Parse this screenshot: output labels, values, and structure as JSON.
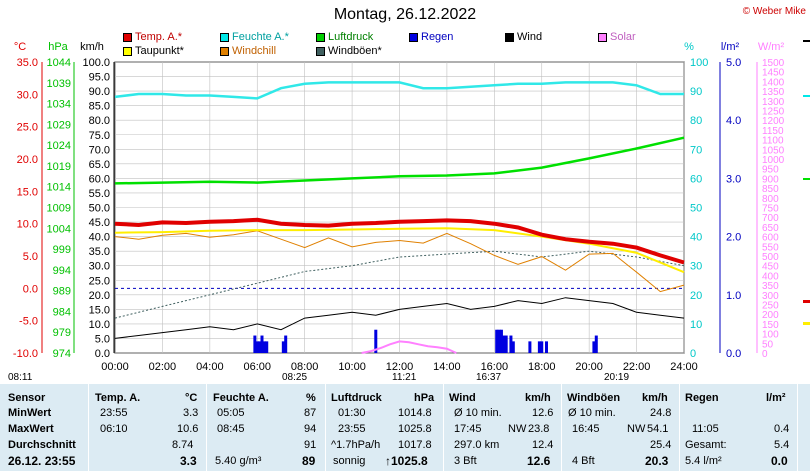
{
  "title": "Montag, 26.12.2022",
  "copyright": "© Weber Mike",
  "legend": [
    {
      "label": "Temp. A.*",
      "color": "#e00000"
    },
    {
      "label": "Feuchte A.*",
      "color": "#00e8e8"
    },
    {
      "label": "Luftdruck",
      "color": "#00d000"
    },
    {
      "label": "Regen",
      "color": "#0000e0"
    },
    {
      "label": "Wind",
      "color": "#000000"
    },
    {
      "label": "Solar",
      "color": "#ff80ff"
    },
    {
      "label": "Taupunkt*",
      "color": "#ffff00"
    },
    {
      "label": "Windchill",
      "color": "#e08000"
    },
    {
      "label": "Windböen*",
      "color": "#406060"
    }
  ],
  "axis_units": {
    "temp": "°C",
    "pressure": "hPa",
    "wind": "km/h",
    "humidity": "%",
    "rain": "l/m²",
    "solar": "W/m²"
  },
  "colors": {
    "temp": "#e00000",
    "pressure": "#00c000",
    "humidity": "#00c8c8",
    "rain": "#0000c0",
    "solar": "#ff80ff",
    "stats_bg": "#dcebf3"
  },
  "chart_data": {
    "type": "line",
    "x_ticks": [
      "00:00",
      "02:00",
      "04:00",
      "06:00",
      "08:00",
      "10:00",
      "12:00",
      "14:00",
      "16:00",
      "18:00",
      "20:00",
      "22:00",
      "24:00"
    ],
    "temp_ticks": [
      "35.0",
      "30.0",
      "25.0",
      "20.0",
      "15.0",
      "10.0",
      "5.0",
      "0.0",
      "-5.0",
      "-10.0"
    ],
    "pressure_ticks": [
      "1044",
      "1039",
      "1034",
      "1029",
      "1024",
      "1019",
      "1014",
      "1009",
      "1004",
      "999",
      "994",
      "989",
      "984",
      "979",
      "974"
    ],
    "wind_ticks": [
      "100.0",
      "95.0",
      "90.0",
      "85.0",
      "80.0",
      "75.0",
      "70.0",
      "65.0",
      "60.0",
      "55.0",
      "50.0",
      "45.0",
      "40.0",
      "35.0",
      "30.0",
      "25.0",
      "20.0",
      "15.0",
      "10.0",
      "5.0",
      "0.0"
    ],
    "humidity_ticks": [
      "100",
      "90",
      "80",
      "70",
      "60",
      "50",
      "40",
      "30",
      "20",
      "10",
      "0"
    ],
    "rain_ticks": [
      "5.0",
      "4.0",
      "3.0",
      "2.0",
      "1.0",
      "0.0"
    ],
    "solar_ticks": [
      "1500",
      "1450",
      "1400",
      "1350",
      "1300",
      "1250",
      "1200",
      "1150",
      "1100",
      "1050",
      "1000",
      "950",
      "900",
      "850",
      "800",
      "750",
      "700",
      "650",
      "600",
      "550",
      "500",
      "450",
      "400",
      "350",
      "300",
      "250",
      "200",
      "150",
      "100",
      "50",
      "0"
    ],
    "series": [
      {
        "name": "Temp. A.*",
        "hours": [
          0,
          1,
          2,
          3,
          4,
          5,
          6,
          7,
          8,
          9,
          10,
          11,
          12,
          13,
          14,
          15,
          16,
          17,
          18,
          19,
          20,
          21,
          22,
          23,
          24
        ],
        "values": [
          10.0,
          9.8,
          10.2,
          10.1,
          10.3,
          10.4,
          10.6,
          10.0,
          9.8,
          9.7,
          10.0,
          10.1,
          10.3,
          10.4,
          10.5,
          10.4,
          10.0,
          9.4,
          8.3,
          7.6,
          7.2,
          6.9,
          6.3,
          5.1,
          4.0
        ]
      },
      {
        "name": "Taupunkt*",
        "hours": [
          0,
          2,
          4,
          6,
          8,
          10,
          12,
          14,
          16,
          18,
          20,
          22,
          24
        ],
        "values": [
          8.6,
          8.7,
          8.9,
          9.0,
          9.0,
          9.1,
          9.2,
          9.3,
          9.0,
          8.0,
          6.9,
          5.5,
          2.5
        ]
      },
      {
        "name": "Feuchte A.*",
        "hours": [
          0,
          1,
          2,
          3,
          4,
          5,
          6,
          7,
          8,
          9,
          10,
          11,
          12,
          13,
          14,
          15,
          16,
          17,
          18,
          19,
          20,
          21,
          22,
          23,
          24
        ],
        "values": [
          88,
          89,
          89,
          88.5,
          88.5,
          88,
          87.5,
          91,
          92.5,
          93,
          93,
          93,
          93,
          91,
          91,
          91.5,
          92,
          92.5,
          92.5,
          93,
          93,
          93,
          92,
          89,
          89
        ]
      },
      {
        "name": "Luftdruck",
        "hours": [
          0,
          2,
          4,
          6,
          8,
          10,
          12,
          14,
          16,
          18,
          20,
          22,
          24
        ],
        "values": [
          1014.8,
          1015.0,
          1015.2,
          1015.0,
          1015.5,
          1016.0,
          1016.5,
          1016.7,
          1017.2,
          1018.6,
          1020.8,
          1023.2,
          1025.8
        ]
      },
      {
        "name": "Wind",
        "hours": [
          0,
          1,
          2,
          3,
          4,
          5,
          6,
          7,
          8,
          9,
          10,
          11,
          12,
          13,
          14,
          15,
          16,
          17,
          18,
          19,
          20,
          21,
          22,
          23,
          24
        ],
        "values": [
          5,
          6,
          7,
          8,
          9,
          8,
          10,
          8,
          12,
          13,
          14,
          13,
          15,
          16,
          17,
          15,
          16,
          18,
          17,
          19,
          18,
          17,
          14,
          13,
          12
        ]
      },
      {
        "name": "Windböen*",
        "hours": [
          0,
          2,
          4,
          6,
          8,
          10,
          12,
          14,
          16,
          18,
          20,
          22,
          24
        ],
        "values": [
          12,
          16,
          20,
          24,
          28,
          30,
          33,
          34,
          35,
          33,
          35,
          33,
          30
        ]
      },
      {
        "name": "Windchill",
        "hours": [
          0,
          1,
          2,
          3,
          4,
          5,
          6,
          7,
          8,
          9,
          10,
          11,
          12,
          13,
          14,
          15,
          16,
          17,
          18,
          19,
          20,
          21,
          22,
          23,
          24
        ],
        "values": [
          8.0,
          7.6,
          8.2,
          8.5,
          7.9,
          8.3,
          8.9,
          7.6,
          6.3,
          7.8,
          6.4,
          7.1,
          7.4,
          7.0,
          8.5,
          6.9,
          5.1,
          3.7,
          4.9,
          2.8,
          5.3,
          5.4,
          2.5,
          -0.5,
          0.5
        ]
      },
      {
        "name": "Solar",
        "hours": [
          10.4,
          10.8,
          11.2,
          11.6,
          12.0,
          12.4,
          12.8,
          13.2,
          13.6,
          14.0,
          14.4
        ],
        "values": [
          0,
          10,
          25,
          45,
          60,
          55,
          45,
          35,
          30,
          22,
          0
        ]
      },
      {
        "name": "Regen",
        "hours": [
          5.9,
          6.0,
          6.1,
          6.2,
          6.3,
          6.4,
          7.1,
          7.2,
          11.0,
          16.1,
          16.2,
          16.3,
          16.4,
          16.5,
          16.7,
          16.8,
          17.5,
          17.9,
          18.0,
          18.2,
          20.2,
          20.3
        ],
        "values": [
          0.3,
          0.2,
          0.2,
          0.3,
          0.2,
          0.2,
          0.2,
          0.3,
          0.4,
          0.4,
          0.4,
          0.4,
          0.3,
          0.3,
          0.3,
          0.2,
          0.2,
          0.2,
          0.2,
          0.2,
          0.2,
          0.3
        ]
      }
    ]
  },
  "sun": {
    "sunrise_top": "08:11",
    "dawn": "08:25",
    "noon": "11:21",
    "moon": "16:37",
    "sunset": "20:19"
  },
  "stats": {
    "headers": {
      "sensor": "Sensor",
      "temp": "Temp. A.",
      "temp_unit": "°C",
      "hum": "Feuchte A.",
      "hum_unit": "%",
      "press": "Luftdruck",
      "press_unit": "hPa",
      "wind": "Wind",
      "wind_unit": "km/h",
      "gust": "Windböen",
      "gust_unit": "km/h",
      "rain": "Regen",
      "rain_unit": "l/m²"
    },
    "labels": {
      "min": "MinWert",
      "max": "MaxWert",
      "avg": "Durchschnitt",
      "current": "26.12. 23:55"
    },
    "temp": {
      "min_time": "23:55",
      "min": "3.3",
      "max_time": "06:10",
      "max": "10.6",
      "avg": "8.74",
      "cur": "3.3"
    },
    "hum": {
      "min_time": "05:05",
      "min": "87",
      "max_time": "08:45",
      "max": "94",
      "avg": "91",
      "abs": "5.40 g/m³",
      "cur": "89"
    },
    "press": {
      "min_time": "01:30",
      "min": "1014.8",
      "max_time": "23:55",
      "max": "1025.8",
      "trend": "^1.7hPa/h",
      "avg": "1017.8",
      "cond": "sonnig",
      "cur": "↑1025.8"
    },
    "wind": {
      "label10": "Ø 10 min.",
      "val10": "12.6",
      "max_time": "17:45",
      "max_dir": "NW",
      "max": "23.8",
      "dist": "297.0 km",
      "avg": "12.4",
      "bft": "3 Bft",
      "cur": "12.6"
    },
    "gust": {
      "label10": "Ø 10 min.",
      "val10": "24.8",
      "max_time": "16:45",
      "max_dir": "NW",
      "max": "54.1",
      "avg": "25.4",
      "bft": "4 Bft",
      "cur": "20.3"
    },
    "rain": {
      "max_time": "11:05",
      "max": "0.4",
      "total_label": "Gesamt:",
      "total": "5.4",
      "day": "5.4 l/m²",
      "cur": "0.0"
    }
  }
}
